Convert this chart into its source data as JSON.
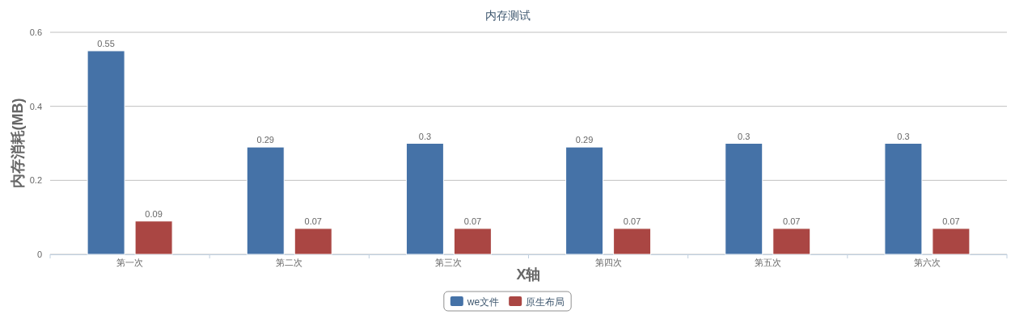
{
  "chart_data": {
    "type": "bar",
    "title": "内存测试",
    "xlabel": "X轴",
    "ylabel": "内存消耗(MB)",
    "categories": [
      "第一次",
      "第二次",
      "第三次",
      "第四次",
      "第五次",
      "第六次"
    ],
    "series": [
      {
        "name": "we文件",
        "color": "#4572a7",
        "values": [
          0.55,
          0.29,
          0.3,
          0.29,
          0.3,
          0.3
        ]
      },
      {
        "name": "原生布局",
        "color": "#aa4643",
        "values": [
          0.09,
          0.07,
          0.07,
          0.07,
          0.07,
          0.07
        ]
      }
    ],
    "ylim": [
      0,
      0.6
    ],
    "yticks": [
      0,
      0.2,
      0.4,
      0.6
    ],
    "grid": "y",
    "legend": "bottom",
    "data_labels": true
  }
}
